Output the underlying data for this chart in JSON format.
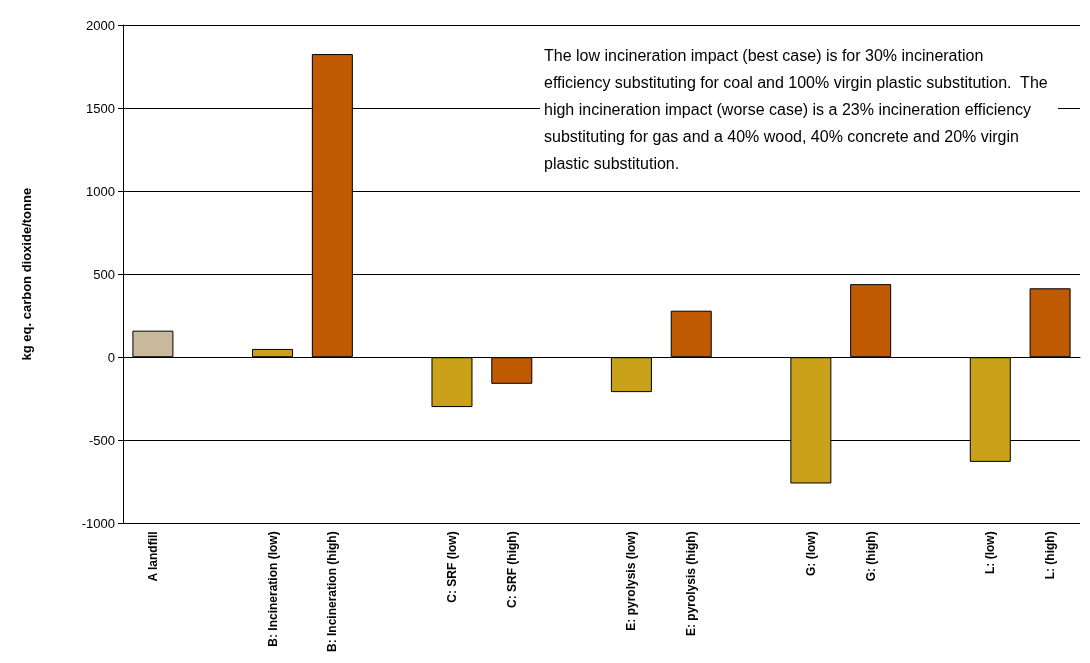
{
  "chart_data": {
    "type": "bar",
    "ylabel": "kg eq. carbon dioxide/tonne",
    "categories": [
      "A landfill",
      null,
      "B: Incineration (low)",
      "B: Incineration (high)",
      null,
      "C: SRF (low)",
      "C: SRF (high)",
      null,
      "E: pyrolysis (low)",
      "E: pyrolysis (high)",
      null,
      "G: (low)",
      "G: (high)",
      null,
      "L: (low)",
      "L: (high)"
    ],
    "values": [
      160,
      null,
      50,
      1825,
      null,
      -300,
      -160,
      null,
      -210,
      280,
      null,
      -760,
      440,
      null,
      -630,
      415
    ],
    "colors": [
      "#c8b99b",
      null,
      "#c9a21a",
      "#bf5a00",
      null,
      "#c9a21a",
      "#bf5a00",
      null,
      "#c9a21a",
      "#bf5a00",
      null,
      "#c9a21a",
      "#bf5a00",
      null,
      "#c9a21a",
      "#bf5a00"
    ],
    "ylim": [
      -1000,
      2000
    ],
    "yticks": [
      -1000,
      -500,
      0,
      500,
      1000,
      1500,
      2000
    ],
    "grid": "y",
    "annotations": [
      "The low incineration impact (best case) is for 30% incineration efficiency substituting for coal and 100% virgin plastic substitution.  The high incineration impact (worse case) is a 23% incineration efficiency substituting for gas and a 40% wood, 40% concrete and 20% virgin plastic substitution."
    ]
  }
}
